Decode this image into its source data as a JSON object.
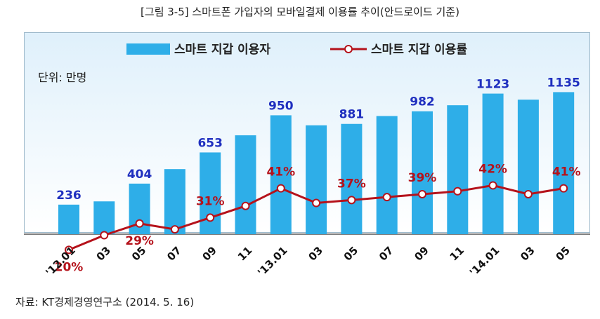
{
  "figure_title": "[그림 3-5] 스마트폰 가입자의 모바일결제 이용률 추이(안드로이드 기준)",
  "source": "자료: KT경제경영연구소 (2014. 5. 16)",
  "chart_data": {
    "type": "bar",
    "unit_label": "단위: 만명",
    "categories": [
      "'12.01",
      "03",
      "05",
      "07",
      "09",
      "11",
      "'13.01",
      "03",
      "05",
      "07",
      "09",
      "11",
      "'14.01",
      "03",
      "05"
    ],
    "series": [
      {
        "name": "스마트 지갑 이용자",
        "type": "bar",
        "color": "#2eaee8",
        "values": [
          236,
          262,
          404,
          520,
          653,
          790,
          950,
          870,
          881,
          944,
          982,
          1030,
          1123,
          1075,
          1135
        ],
        "labels": {
          "0": "236",
          "2": "404",
          "4": "653",
          "6": "950",
          "8": "881",
          "10": "982",
          "12": "1123",
          "14": "1135"
        }
      },
      {
        "name": "스마트 지갑 이용률",
        "type": "line",
        "color": "#b5121b",
        "values": [
          20,
          25,
          29,
          27,
          31,
          35,
          41,
          36,
          37,
          38,
          39,
          40,
          42,
          39,
          41
        ],
        "labels": {
          "0": "20%",
          "2": "29%",
          "4": "31%",
          "6": "41%",
          "8": "37%",
          "10": "39%",
          "12": "42%",
          "14": "41%"
        }
      }
    ],
    "colors": {
      "bar_label": "#1f2fbf",
      "line_label": "#b5121b",
      "background_top": "#dff0fb",
      "background_bottom": "#ffffff"
    },
    "legend_position": "top"
  }
}
